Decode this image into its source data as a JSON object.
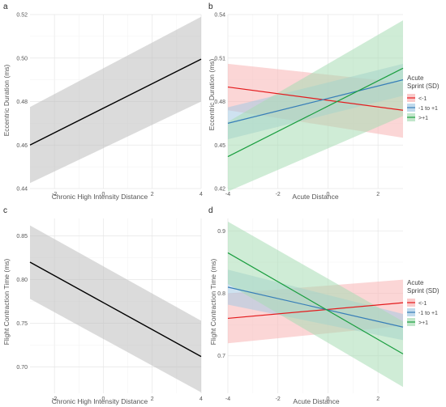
{
  "chart_data": [
    {
      "type": "line",
      "panel_label": "a",
      "xlabel": "Chronic High Intensity Distance",
      "ylabel": "Eccentric Duration (ms)",
      "xlim": [
        -3,
        4
      ],
      "ylim": [
        0.44,
        0.52
      ],
      "xticks": [
        -2,
        0,
        2,
        4
      ],
      "yticks": [
        0.44,
        0.46,
        0.48,
        0.5,
        0.52
      ],
      "ytick_labels": [
        "0.44",
        "0.46",
        "0.48",
        "0.50",
        "0.52"
      ],
      "grid": true,
      "series": [
        {
          "x": [
            -3,
            4
          ],
          "y": [
            0.46,
            0.4995
          ],
          "lower": [
            0.4425,
            0.48
          ],
          "upper": [
            0.4775,
            0.519
          ],
          "color": "#000000",
          "ribbon_color": "#bdbdbd"
        }
      ]
    },
    {
      "type": "line",
      "panel_label": "b",
      "xlabel": "Acute Distance",
      "ylabel": "Eccentric Duration (ms)",
      "xlim": [
        -4,
        3
      ],
      "ylim": [
        0.42,
        0.54
      ],
      "xticks": [
        -4,
        -2,
        0,
        2
      ],
      "yticks": [
        0.42,
        0.45,
        0.48,
        0.51,
        0.54
      ],
      "ytick_labels": [
        "0.42",
        "0.45",
        "0.48",
        "0.51",
        "0.54"
      ],
      "grid": true,
      "legend": {
        "title": [
          "Acute",
          "Sprint (SD)"
        ],
        "position": "right"
      },
      "series": [
        {
          "name": "<-1",
          "x": [
            -4,
            3
          ],
          "y": [
            0.49,
            0.474
          ],
          "lower": [
            0.474,
            0.455
          ],
          "upper": [
            0.506,
            0.493
          ],
          "color": "#e41a1c",
          "ribbon_color": "#f8b4b4"
        },
        {
          "name": "-1 to +1",
          "x": [
            -4,
            3
          ],
          "y": [
            0.465,
            0.495
          ],
          "lower": [
            0.454,
            0.484
          ],
          "upper": [
            0.476,
            0.506
          ],
          "color": "#377eb8",
          "ribbon_color": "#a6cbe4"
        },
        {
          "name": ">+1",
          "x": [
            -4,
            3
          ],
          "y": [
            0.442,
            0.503
          ],
          "lower": [
            0.418,
            0.47
          ],
          "upper": [
            0.466,
            0.536
          ],
          "color": "#1a9e3f",
          "ribbon_color": "#a8dcb5"
        }
      ]
    },
    {
      "type": "line",
      "panel_label": "c",
      "xlabel": "Chronic High Intensity Distance",
      "ylabel": "Flight Contraction Time (ms)",
      "xlim": [
        -3,
        4
      ],
      "ylim": [
        0.67,
        0.87
      ],
      "xticks": [
        -2,
        0,
        2,
        4
      ],
      "yticks": [
        0.7,
        0.75,
        0.8,
        0.85
      ],
      "ytick_labels": [
        "0.70",
        "0.75",
        "0.80",
        "0.85"
      ],
      "grid": true,
      "series": [
        {
          "x": [
            -3,
            4
          ],
          "y": [
            0.82,
            0.712
          ],
          "lower": [
            0.778,
            0.671
          ],
          "upper": [
            0.862,
            0.753
          ],
          "color": "#000000",
          "ribbon_color": "#bdbdbd"
        }
      ]
    },
    {
      "type": "line",
      "panel_label": "d",
      "xlabel": "Acute Distance",
      "ylabel": "Flight Contraction Time (ms)",
      "xlim": [
        -4,
        3
      ],
      "ylim": [
        0.64,
        0.92
      ],
      "xticks": [
        -4,
        -2,
        0,
        2
      ],
      "yticks": [
        0.7,
        0.8,
        0.9
      ],
      "ytick_labels": [
        "0.7",
        "0.8",
        "0.9"
      ],
      "grid": true,
      "legend": {
        "title": [
          "Acute",
          "Sprint (SD)"
        ],
        "position": "right"
      },
      "series": [
        {
          "name": "<-1",
          "x": [
            -4,
            3
          ],
          "y": [
            0.76,
            0.785
          ],
          "lower": [
            0.72,
            0.748
          ],
          "upper": [
            0.8,
            0.822
          ],
          "color": "#e41a1c",
          "ribbon_color": "#f8b4b4"
        },
        {
          "name": "-1 to +1",
          "x": [
            -4,
            3
          ],
          "y": [
            0.81,
            0.746
          ],
          "lower": [
            0.782,
            0.725
          ],
          "upper": [
            0.838,
            0.767
          ],
          "color": "#377eb8",
          "ribbon_color": "#a6cbe4"
        },
        {
          "name": ">+1",
          "x": [
            -4,
            3
          ],
          "y": [
            0.865,
            0.703
          ],
          "lower": [
            0.815,
            0.65
          ],
          "upper": [
            0.915,
            0.755
          ],
          "color": "#1a9e3f",
          "ribbon_color": "#a8dcb5"
        }
      ]
    }
  ]
}
